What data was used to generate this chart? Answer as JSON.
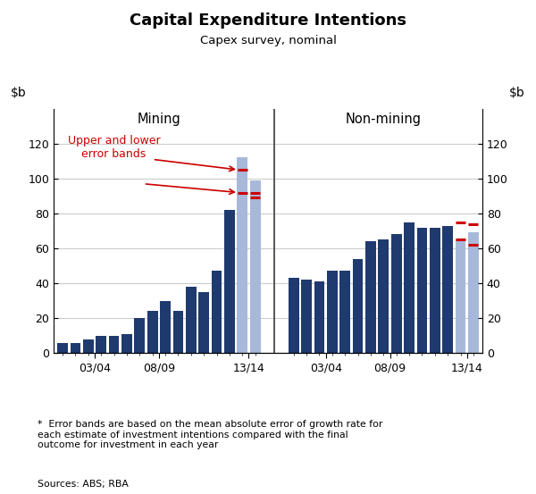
{
  "title": "Capital Expenditure Intentions",
  "subtitle": "Capex survey, nominal",
  "ylim": [
    0,
    140
  ],
  "yticks": [
    0,
    20,
    40,
    60,
    80,
    100,
    120
  ],
  "mining_label": "Mining",
  "nonmining_label": "Non-mining",
  "annotation_text": "Upper and lower\nerror bands",
  "footnote_star": "*",
  "footnote_body": "Error bands are based on the mean absolute error of growth rate for\neach estimate of investment intentions compared with the final\noutcome for investment in each year",
  "footnote_sources": "Sources: ABS; RBA",
  "xtick_labels_mining": [
    "03/04",
    "08/09",
    "13/14"
  ],
  "xtick_labels_nonmining": [
    "03/04",
    "08/09",
    "13/14"
  ],
  "mining_bar_values": [
    6,
    6,
    8,
    10,
    10,
    11,
    20,
    24,
    30,
    24,
    38,
    35,
    47,
    82
  ],
  "mining_forecast_values": [
    112,
    99
  ],
  "mining_fc_upper": [
    105,
    92
  ],
  "mining_fc_lower": [
    92,
    89
  ],
  "nonmining_bar_values": [
    43,
    42,
    41,
    47,
    47,
    54,
    64,
    65,
    68,
    75,
    72,
    72,
    73
  ],
  "nonmining_forecast_values": [
    65,
    69
  ],
  "nonmining_fc_upper": [
    75,
    74
  ],
  "nonmining_fc_lower": [
    65,
    62
  ],
  "dark_blue": "#1F3A6E",
  "light_blue": "#A8B8D8",
  "error_red": "#CC0000",
  "divider_color": "#555555",
  "grid_color": "#CCCCCC",
  "background_color": "#FFFFFF"
}
